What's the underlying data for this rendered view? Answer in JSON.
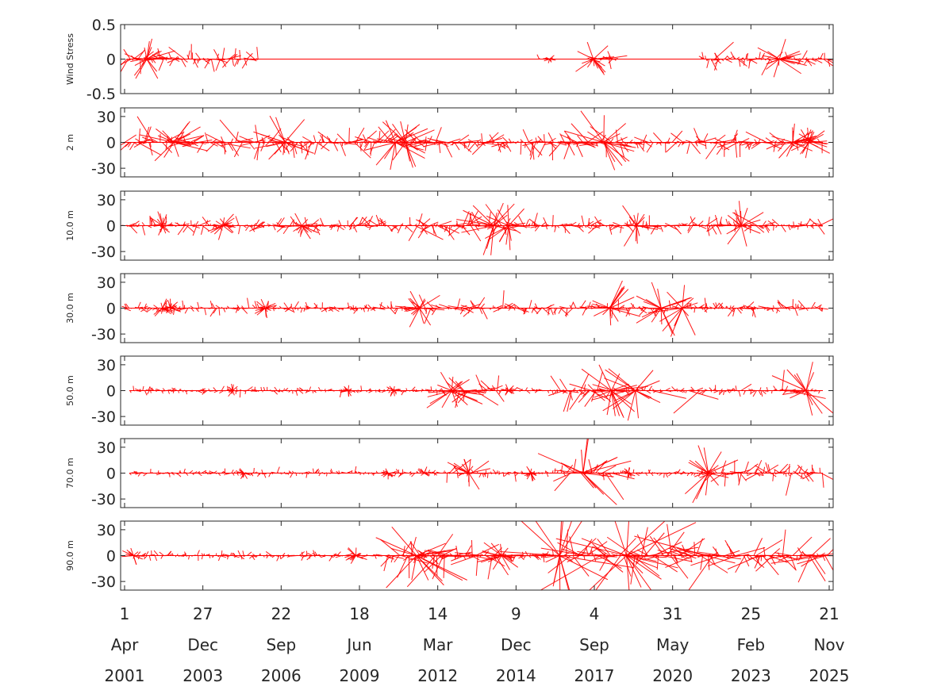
{
  "chart_data": {
    "type": "line",
    "subtype": "stick-vector-time-series",
    "title": "",
    "color": "#ff0000",
    "x_axis": {
      "range": [
        "2001-04-01",
        "2025-11-21"
      ],
      "ticks": [
        {
          "date": "2001-04-01",
          "day": "1",
          "month": "Apr",
          "year": "2001"
        },
        {
          "date": "2003-12-27",
          "day": "27",
          "month": "Dec",
          "year": "2003"
        },
        {
          "date": "2006-09-22",
          "day": "22",
          "month": "Sep",
          "year": "2006"
        },
        {
          "date": "2009-06-18",
          "day": "18",
          "month": "Jun",
          "year": "2009"
        },
        {
          "date": "2012-03-14",
          "day": "14",
          "month": "Mar",
          "year": "2012"
        },
        {
          "date": "2014-12-09",
          "day": "9",
          "month": "Dec",
          "year": "2014"
        },
        {
          "date": "2017-09-04",
          "day": "4",
          "month": "Sep",
          "year": "2017"
        },
        {
          "date": "2020-05-31",
          "day": "31",
          "month": "May",
          "year": "2020"
        },
        {
          "date": "2023-02-25",
          "day": "25",
          "month": "Feb",
          "year": "2023"
        },
        {
          "date": "2025-11-21",
          "day": "21",
          "month": "Nov",
          "year": "2025"
        }
      ]
    },
    "panels": [
      {
        "ylabel": "Wind Stress",
        "ylim": [
          -0.5,
          0.5
        ],
        "yticks": [
          {
            "value": 0.5,
            "label": "0.5"
          },
          {
            "value": 0,
            "label": "0"
          },
          {
            "value": -0.5,
            "label": "-0.5"
          }
        ],
        "data_span": [
          "2001-05-01",
          "2025-11-21"
        ],
        "segments": [
          {
            "start": "2001-05-01",
            "end": "2005-12-01",
            "amplitude": 0.15,
            "peak": 0.38
          },
          {
            "start": "2015-10-01",
            "end": "2016-03-01",
            "amplitude": 0.05,
            "peak": 0.08
          },
          {
            "start": "2017-06-01",
            "end": "2018-06-01",
            "amplitude": 0.12,
            "peak": 0.3
          },
          {
            "start": "2021-06-01",
            "end": "2025-11-21",
            "amplitude": 0.12,
            "peak": 0.35
          }
        ]
      },
      {
        "ylabel": "2 m",
        "ylim": [
          -40,
          40
        ],
        "yticks": [
          {
            "value": 30,
            "label": "30"
          },
          {
            "value": 0,
            "label": "0"
          },
          {
            "value": -30,
            "label": "-30"
          }
        ],
        "data_span": [
          "2001-04-01",
          "2025-09-01"
        ],
        "segments": [
          {
            "start": "2001-04-01",
            "end": "2017-01-01",
            "amplitude": 14,
            "peak": 35
          },
          {
            "start": "2017-01-01",
            "end": "2018-06-01",
            "amplitude": 20,
            "peak": 45
          },
          {
            "start": "2018-06-01",
            "end": "2025-09-01",
            "amplitude": 12,
            "peak": 25
          }
        ]
      },
      {
        "ylabel": "10.0 m",
        "ylim": [
          -40,
          40
        ],
        "yticks": [
          {
            "value": 30,
            "label": "30"
          },
          {
            "value": 0,
            "label": "0"
          },
          {
            "value": -30,
            "label": "-30"
          }
        ],
        "data_span": [
          "2001-04-01",
          "2025-09-01"
        ],
        "segments": [
          {
            "start": "2001-04-01",
            "end": "2011-06-01",
            "amplitude": 9,
            "peak": 18
          },
          {
            "start": "2011-06-01",
            "end": "2014-03-01",
            "amplitude": 14,
            "peak": 38
          },
          {
            "start": "2014-03-01",
            "end": "2025-09-01",
            "amplitude": 9,
            "peak": 30
          }
        ]
      },
      {
        "ylabel": "30.0 m",
        "ylim": [
          -40,
          40
        ],
        "yticks": [
          {
            "value": 30,
            "label": "30"
          },
          {
            "value": 0,
            "label": "0"
          },
          {
            "value": -30,
            "label": "-30"
          }
        ],
        "data_span": [
          "2001-04-01",
          "2025-09-01"
        ],
        "segments": [
          {
            "start": "2001-04-01",
            "end": "2011-06-01",
            "amplitude": 6,
            "peak": 12
          },
          {
            "start": "2011-06-01",
            "end": "2014-03-01",
            "amplitude": 10,
            "peak": 25
          },
          {
            "start": "2014-03-01",
            "end": "2025-09-01",
            "amplitude": 8,
            "peak": 36
          }
        ]
      },
      {
        "ylabel": "50.0 m",
        "ylim": [
          -40,
          40
        ],
        "yticks": [
          {
            "value": 30,
            "label": "30"
          },
          {
            "value": 0,
            "label": "0"
          },
          {
            "value": -30,
            "label": "-30"
          }
        ],
        "data_span": [
          "2001-06-01",
          "2025-09-01"
        ],
        "segments": [
          {
            "start": "2001-06-01",
            "end": "2012-06-01",
            "amplitude": 4,
            "peak": 8
          },
          {
            "start": "2012-06-01",
            "end": "2014-06-01",
            "amplitude": 14,
            "peak": 35
          },
          {
            "start": "2014-06-01",
            "end": "2016-06-01",
            "amplitude": 4,
            "peak": 8
          },
          {
            "start": "2016-06-01",
            "end": "2018-06-01",
            "amplitude": 18,
            "peak": 45
          },
          {
            "start": "2018-06-01",
            "end": "2025-09-01",
            "amplitude": 5,
            "peak": 40
          }
        ]
      },
      {
        "ylabel": "70.0 m",
        "ylim": [
          -40,
          40
        ],
        "yticks": [
          {
            "value": 30,
            "label": "30"
          },
          {
            "value": 0,
            "label": "0"
          },
          {
            "value": -30,
            "label": "-30"
          }
        ],
        "data_span": [
          "2001-06-01",
          "2025-09-01"
        ],
        "segments": [
          {
            "start": "2001-06-01",
            "end": "2012-06-01",
            "amplitude": 4,
            "peak": 8
          },
          {
            "start": "2012-06-01",
            "end": "2013-06-01",
            "amplitude": 8,
            "peak": 25
          },
          {
            "start": "2013-06-01",
            "end": "2016-09-01",
            "amplitude": 4,
            "peak": 10
          },
          {
            "start": "2016-09-01",
            "end": "2018-06-01",
            "amplitude": 18,
            "peak": 50
          },
          {
            "start": "2018-06-01",
            "end": "2021-06-01",
            "amplitude": 4,
            "peak": 8
          },
          {
            "start": "2021-06-01",
            "end": "2025-09-01",
            "amplitude": 12,
            "peak": 40
          }
        ]
      },
      {
        "ylabel": "90.0 m",
        "ylim": [
          -40,
          40
        ],
        "yticks": [
          {
            "value": 30,
            "label": "30"
          },
          {
            "value": 0,
            "label": "0"
          },
          {
            "value": -30,
            "label": "-30"
          }
        ],
        "data_span": [
          "2001-06-01",
          "2025-11-21"
        ],
        "segments": [
          {
            "start": "2001-06-01",
            "end": "2010-06-01",
            "amplitude": 5,
            "peak": 12
          },
          {
            "start": "2010-06-01",
            "end": "2014-06-01",
            "amplitude": 20,
            "peak": 60
          },
          {
            "start": "2014-06-01",
            "end": "2016-06-01",
            "amplitude": 6,
            "peak": 25
          },
          {
            "start": "2016-06-01",
            "end": "2025-11-21",
            "amplitude": 25,
            "peak": 80
          }
        ]
      }
    ],
    "grid": false,
    "legend": "none"
  }
}
